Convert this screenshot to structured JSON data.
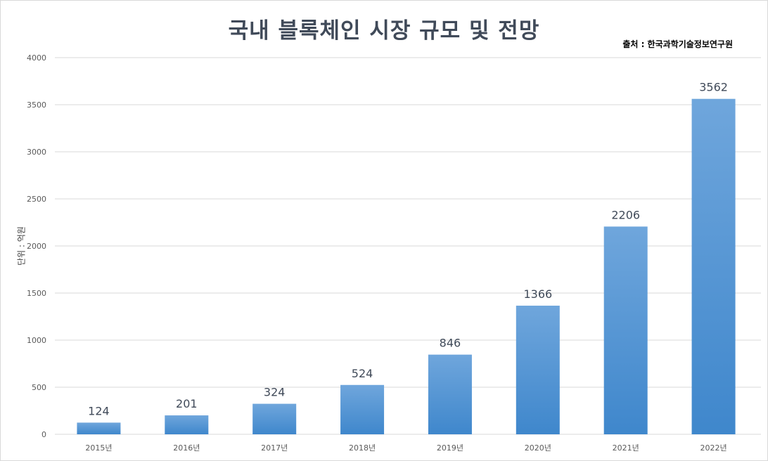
{
  "chart_data": {
    "type": "bar",
    "title": "국내 블록체인 시장 규모 및 전망",
    "source": "출처 : 한국과학기술정보연구원",
    "ylabel": "단위 : 억원",
    "xlabel": "",
    "categories": [
      "2015년",
      "2016년",
      "2017년",
      "2018년",
      "2019년",
      "2020년",
      "2021년",
      "2022년"
    ],
    "values": [
      124,
      201,
      324,
      524,
      846,
      1366,
      2206,
      3562
    ],
    "ylim": [
      0,
      4000
    ],
    "yticks": [
      0,
      500,
      1000,
      1500,
      2000,
      2500,
      3000,
      3500,
      4000
    ],
    "grid": true,
    "data_labels": true,
    "colors": {
      "bar_top": "#6fa6dc",
      "bar_bottom": "#3f87cc",
      "grid": "#d9d9d9",
      "title": "#404a59"
    }
  }
}
